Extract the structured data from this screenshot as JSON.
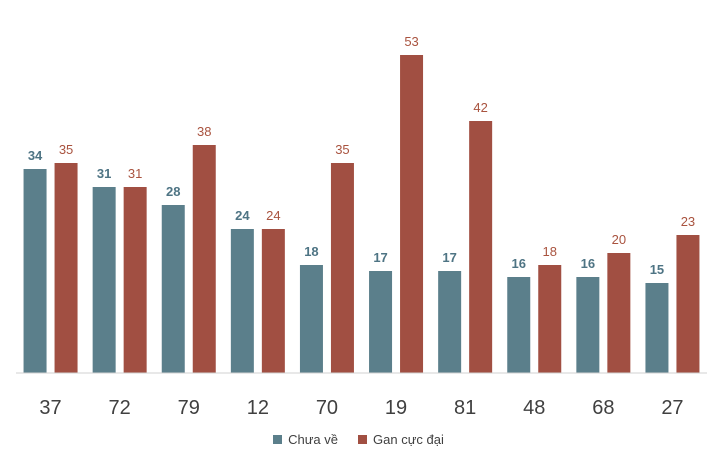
{
  "chart_data": {
    "type": "bar",
    "categories": [
      "37",
      "72",
      "79",
      "12",
      "70",
      "19",
      "81",
      "48",
      "68",
      "27"
    ],
    "series": [
      {
        "name": "Chưa về",
        "color": "#5b7f8b",
        "values": [
          34,
          31,
          28,
          24,
          18,
          17,
          17,
          16,
          16,
          15
        ]
      },
      {
        "name": "Gan cực đại",
        "color": "#a14f42",
        "values": [
          35,
          31,
          38,
          24,
          35,
          53,
          42,
          18,
          20,
          23
        ]
      }
    ],
    "title": "",
    "xlabel": "",
    "ylabel": "",
    "ylim": [
      0,
      55
    ],
    "grid": false,
    "legend": "bottom"
  }
}
